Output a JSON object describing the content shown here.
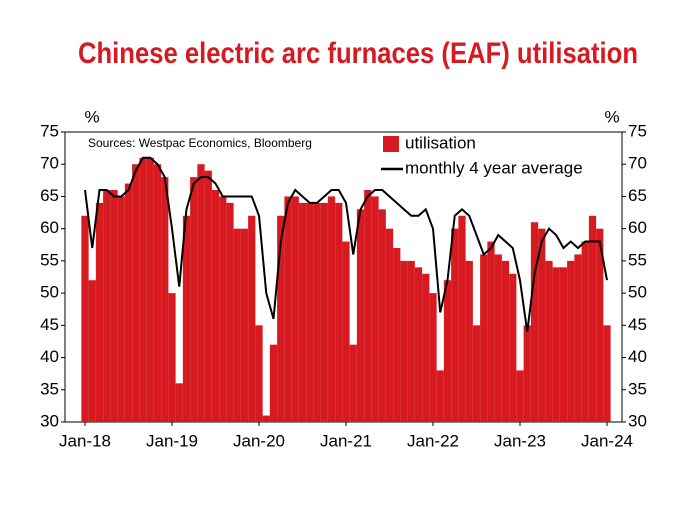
{
  "chart_data": {
    "type": "bar_line",
    "title": "Chinese electric arc furnaces (EAF) utilisation",
    "source": "Sources: Westpac Economics, Bloomberg",
    "y_unit": "%",
    "y2_unit": "%",
    "categories": [
      "Jan-18",
      null,
      null,
      null,
      null,
      null,
      null,
      null,
      null,
      null,
      null,
      null,
      "Jan-19",
      null,
      null,
      null,
      null,
      null,
      null,
      null,
      null,
      null,
      null,
      null,
      "Jan-20",
      null,
      null,
      null,
      null,
      null,
      null,
      null,
      null,
      null,
      null,
      null,
      "Jan-21",
      null,
      null,
      null,
      null,
      null,
      null,
      null,
      null,
      null,
      null,
      null,
      "Jan-22",
      null,
      null,
      null,
      null,
      null,
      null,
      null,
      null,
      null,
      null,
      null,
      "Jan-23",
      null,
      null,
      null,
      null,
      null,
      null,
      null,
      null,
      null,
      null,
      null,
      "Jan-24"
    ],
    "series": [
      {
        "name": "utilisation",
        "kind": "bar",
        "color": "#d71920",
        "values": [
          62,
          52,
          64,
          66,
          66,
          65,
          67,
          70,
          71,
          71,
          70,
          68,
          50,
          36,
          62,
          68,
          70,
          69,
          66,
          65,
          64,
          60,
          60,
          62,
          45,
          31,
          42,
          62,
          65,
          65,
          64,
          64,
          64,
          64,
          65,
          64,
          58,
          42,
          63,
          66,
          65,
          63,
          60,
          57,
          55,
          55,
          54,
          53,
          50,
          38,
          52,
          60,
          62,
          55,
          45,
          56,
          58,
          56,
          55,
          53,
          38,
          45,
          61,
          60,
          55,
          54,
          54,
          55,
          56,
          58,
          62,
          60,
          45
        ]
      },
      {
        "name": "monthly 4 year average",
        "kind": "line",
        "color": "#000000",
        "values": [
          66,
          57,
          66,
          66,
          65,
          65,
          66,
          69,
          71,
          71,
          70,
          68,
          60,
          51,
          63,
          67,
          68,
          68,
          67,
          65,
          65,
          65,
          65,
          65,
          62,
          50,
          46,
          58,
          64,
          66,
          65,
          64,
          64,
          65,
          66,
          66,
          64,
          56,
          63,
          65,
          66,
          66,
          65,
          64,
          63,
          62,
          62,
          63,
          60,
          47,
          52,
          62,
          63,
          62,
          59,
          56,
          57,
          59,
          58,
          57,
          52,
          44,
          53,
          58,
          60,
          59,
          57,
          58,
          57,
          58,
          58,
          58,
          52
        ]
      }
    ],
    "ylim": [
      30,
      75
    ],
    "yticks": [
      30,
      35,
      40,
      45,
      50,
      55,
      60,
      65,
      70,
      75
    ],
    "y2lim": [
      30,
      75
    ],
    "y2ticks": [
      30,
      35,
      40,
      45,
      50,
      55,
      60,
      65,
      70,
      75
    ],
    "legend": "top-right"
  }
}
